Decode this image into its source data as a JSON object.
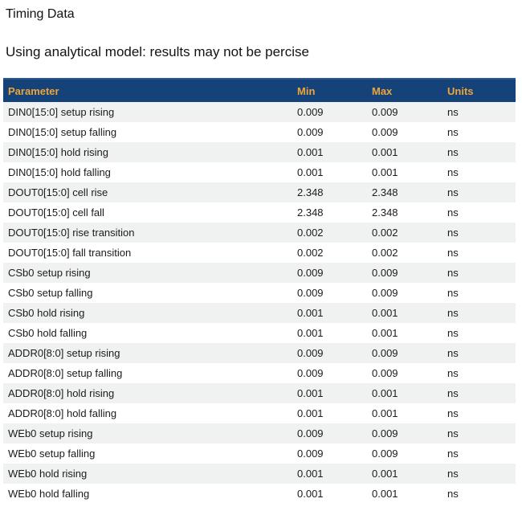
{
  "page": {
    "title": "Timing Data",
    "subtitle": "Using analytical model: results may not be percise"
  },
  "table": {
    "columns": [
      "Parameter",
      "Min",
      "Max",
      "Units"
    ],
    "rows": [
      {
        "parameter": "DIN0[15:0] setup rising",
        "min": "0.009",
        "max": "0.009",
        "units": "ns"
      },
      {
        "parameter": "DIN0[15:0] setup falling",
        "min": "0.009",
        "max": "0.009",
        "units": "ns"
      },
      {
        "parameter": "DIN0[15:0] hold rising",
        "min": "0.001",
        "max": "0.001",
        "units": "ns"
      },
      {
        "parameter": "DIN0[15:0] hold falling",
        "min": "0.001",
        "max": "0.001",
        "units": "ns"
      },
      {
        "parameter": "DOUT0[15:0] cell rise",
        "min": "2.348",
        "max": "2.348",
        "units": "ns"
      },
      {
        "parameter": "DOUT0[15:0] cell fall",
        "min": "2.348",
        "max": "2.348",
        "units": "ns"
      },
      {
        "parameter": "DOUT0[15:0] rise transition",
        "min": "0.002",
        "max": "0.002",
        "units": "ns"
      },
      {
        "parameter": "DOUT0[15:0] fall transition",
        "min": "0.002",
        "max": "0.002",
        "units": "ns"
      },
      {
        "parameter": "CSb0 setup rising",
        "min": "0.009",
        "max": "0.009",
        "units": "ns"
      },
      {
        "parameter": "CSb0 setup falling",
        "min": "0.009",
        "max": "0.009",
        "units": "ns"
      },
      {
        "parameter": "CSb0 hold rising",
        "min": "0.001",
        "max": "0.001",
        "units": "ns"
      },
      {
        "parameter": "CSb0 hold falling",
        "min": "0.001",
        "max": "0.001",
        "units": "ns"
      },
      {
        "parameter": "ADDR0[8:0] setup rising",
        "min": "0.009",
        "max": "0.009",
        "units": "ns"
      },
      {
        "parameter": "ADDR0[8:0] setup falling",
        "min": "0.009",
        "max": "0.009",
        "units": "ns"
      },
      {
        "parameter": "ADDR0[8:0] hold rising",
        "min": "0.001",
        "max": "0.001",
        "units": "ns"
      },
      {
        "parameter": "ADDR0[8:0] hold falling",
        "min": "0.001",
        "max": "0.001",
        "units": "ns"
      },
      {
        "parameter": "WEb0 setup rising",
        "min": "0.009",
        "max": "0.009",
        "units": "ns"
      },
      {
        "parameter": "WEb0 setup falling",
        "min": "0.009",
        "max": "0.009",
        "units": "ns"
      },
      {
        "parameter": "WEb0 hold rising",
        "min": "0.001",
        "max": "0.001",
        "units": "ns"
      },
      {
        "parameter": "WEb0 hold falling",
        "min": "0.001",
        "max": "0.001",
        "units": "ns"
      }
    ]
  },
  "colors": {
    "header_bg": "#144279",
    "header_border_top": "#2b5795",
    "header_text": "#efa538",
    "row_alt_bg": "#f0f1f1",
    "body_text": "#1b1b1b"
  }
}
